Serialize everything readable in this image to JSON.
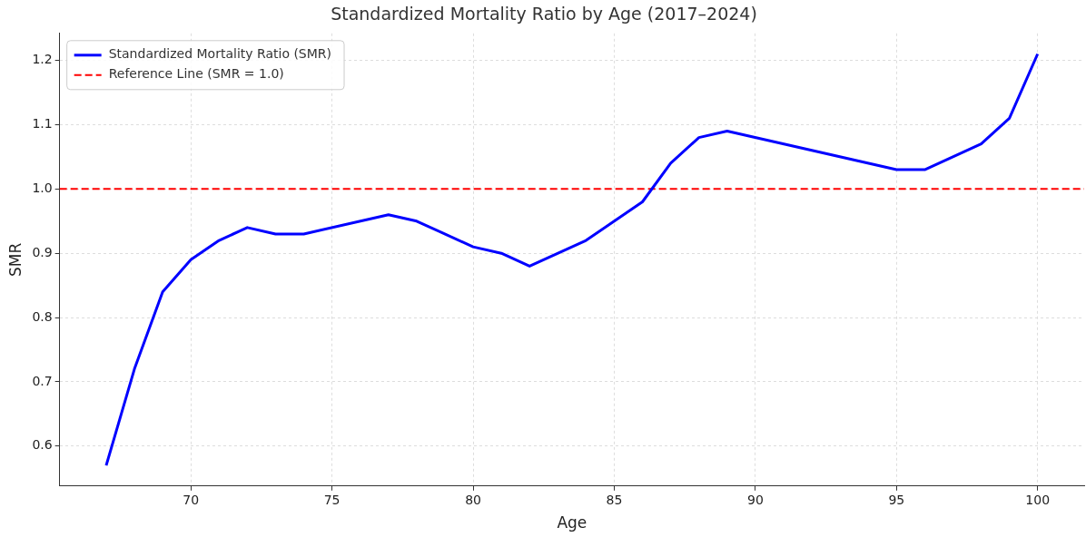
{
  "chart_data": {
    "type": "line",
    "title": "Standardized Mortality Ratio by Age (2017–2024)",
    "xlabel": "Age",
    "ylabel": "SMR",
    "series": [
      {
        "name": "Standardized Mortality Ratio (SMR)",
        "color": "#0000ff",
        "x": [
          67,
          68,
          69,
          70,
          71,
          72,
          73,
          74,
          77,
          78,
          80,
          81,
          82,
          84,
          86,
          87,
          88,
          89,
          95,
          96,
          98,
          99,
          100
        ],
        "values": [
          0.57,
          0.72,
          0.84,
          0.89,
          0.92,
          0.94,
          0.93,
          0.93,
          0.96,
          0.95,
          0.91,
          0.9,
          0.88,
          0.92,
          0.98,
          1.04,
          1.08,
          1.09,
          1.03,
          1.03,
          1.07,
          1.11,
          1.21
        ]
      }
    ],
    "ref_lines": [
      {
        "axis": "y",
        "value": 1.0,
        "label": "Reference Line (SMR = 1.0)",
        "color": "#ff0000",
        "line_style": "dashed"
      }
    ],
    "xlim": [
      65.35,
      101.65
    ],
    "xticks": [
      70,
      75,
      80,
      85,
      90,
      95,
      100
    ],
    "ylim": [
      0.538,
      1.242
    ],
    "yticks": [
      0.6,
      0.7,
      0.8,
      0.9,
      {
        "value": 1,
        "label": "1.0"
      },
      1.1,
      1.2
    ],
    "grid": true,
    "legend": "top left",
    "line_style": "solid",
    "marker": "none"
  }
}
